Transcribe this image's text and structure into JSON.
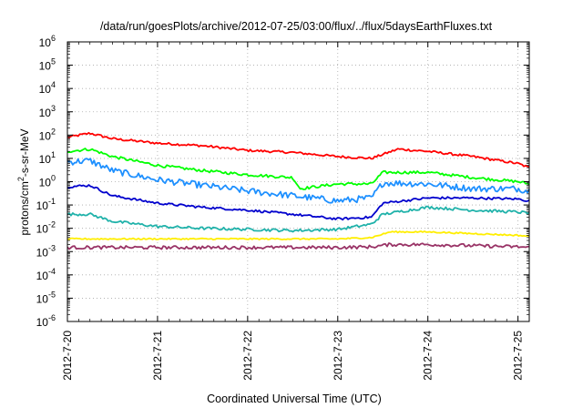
{
  "chart_data": {
    "type": "line",
    "title": "/data/run/goesPlots/archive/2012-07-25/03:00/flux/../flux/5daysEarthFluxes.txt",
    "xlabel": "Coordinated Universal Time (UTC)",
    "ylabel": {
      "base": "protons/cm",
      "sup": "2",
      "rest": "-s-sr-MeV"
    },
    "yscale": "log",
    "ylim": [
      -6,
      6
    ],
    "xlim": [
      "2012-07-20 00:00",
      "2012-07-25 03:00"
    ],
    "x_ticks": [
      "2012-7-20",
      "2012-7-21",
      "2012-7-22",
      "2012-7-23",
      "2012-7-24",
      "2012-7-25"
    ],
    "y_ticks": [
      {
        "base": "10",
        "exp": "-6"
      },
      {
        "base": "10",
        "exp": "-5"
      },
      {
        "base": "10",
        "exp": "-4"
      },
      {
        "base": "10",
        "exp": "-3"
      },
      {
        "base": "10",
        "exp": "-2"
      },
      {
        "base": "10",
        "exp": "-1"
      },
      {
        "base": "10",
        "exp": "0"
      },
      {
        "base": "10",
        "exp": "1"
      },
      {
        "base": "10",
        "exp": "2"
      },
      {
        "base": "10",
        "exp": "3"
      },
      {
        "base": "10",
        "exp": "4"
      },
      {
        "base": "10",
        "exp": "5"
      },
      {
        "base": "10",
        "exp": "6"
      }
    ],
    "grid": true,
    "legend": "none",
    "series": [
      {
        "color": "#ff0000",
        "noise": 0.05,
        "x": [
          "2012-07-20 00:00",
          "2012-07-20 06:00",
          "2012-07-20 12:00",
          "2012-07-21 00:00",
          "2012-07-21 12:00",
          "2012-07-22 00:00",
          "2012-07-22 12:00",
          "2012-07-23 00:00",
          "2012-07-23 09:00",
          "2012-07-23 16:00",
          "2012-07-24 00:00",
          "2012-07-24 12:00",
          "2012-07-25 00:00",
          "2012-07-25 03:00"
        ],
        "y": [
          80,
          120,
          70,
          45,
          35,
          22,
          18,
          12,
          10,
          25,
          20,
          12,
          6,
          4
        ]
      },
      {
        "color": "#00ff00",
        "noise": 0.06,
        "x": [
          "2012-07-20 00:00",
          "2012-07-20 06:00",
          "2012-07-20 12:00",
          "2012-07-21 00:00",
          "2012-07-21 12:00",
          "2012-07-22 00:00",
          "2012-07-22 12:00",
          "2012-07-22 14:00",
          "2012-07-23 00:00",
          "2012-07-23 09:00",
          "2012-07-23 12:00",
          "2012-07-24 00:00",
          "2012-07-24 12:00",
          "2012-07-25 00:00",
          "2012-07-25 03:00"
        ],
        "y": [
          20,
          25,
          12,
          5,
          3,
          2,
          1.5,
          0.5,
          0.8,
          0.8,
          2.5,
          2.5,
          1.5,
          1,
          0.8
        ]
      },
      {
        "color": "#1e90ff",
        "noise": 0.14,
        "x": [
          "2012-07-20 00:00",
          "2012-07-20 06:00",
          "2012-07-20 12:00",
          "2012-07-21 00:00",
          "2012-07-21 12:00",
          "2012-07-22 00:00",
          "2012-07-22 12:00",
          "2012-07-23 00:00",
          "2012-07-23 09:00",
          "2012-07-23 12:00",
          "2012-07-24 00:00",
          "2012-07-24 12:00",
          "2012-07-25 00:00",
          "2012-07-25 03:00"
        ],
        "y": [
          7,
          8,
          3,
          1.2,
          0.7,
          0.4,
          0.25,
          0.15,
          0.2,
          0.9,
          0.8,
          0.5,
          0.5,
          0.4
        ]
      },
      {
        "color": "#0000cd",
        "noise": 0.05,
        "x": [
          "2012-07-20 00:00",
          "2012-07-20 06:00",
          "2012-07-20 12:00",
          "2012-07-21 00:00",
          "2012-07-21 12:00",
          "2012-07-22 00:00",
          "2012-07-22 12:00",
          "2012-07-23 00:00",
          "2012-07-23 09:00",
          "2012-07-23 12:00",
          "2012-07-24 00:00",
          "2012-07-24 12:00",
          "2012-07-25 00:00",
          "2012-07-25 03:00"
        ],
        "y": [
          0.6,
          0.7,
          0.25,
          0.12,
          0.08,
          0.06,
          0.04,
          0.025,
          0.03,
          0.12,
          0.2,
          0.2,
          0.18,
          0.15
        ]
      },
      {
        "color": "#20b2aa",
        "noise": 0.06,
        "x": [
          "2012-07-20 00:00",
          "2012-07-20 06:00",
          "2012-07-20 12:00",
          "2012-07-21 00:00",
          "2012-07-21 12:00",
          "2012-07-22 00:00",
          "2012-07-22 12:00",
          "2012-07-23 00:00",
          "2012-07-23 09:00",
          "2012-07-23 12:00",
          "2012-07-24 00:00",
          "2012-07-24 12:00",
          "2012-07-25 00:00",
          "2012-07-25 03:00"
        ],
        "y": [
          0.04,
          0.04,
          0.02,
          0.012,
          0.01,
          0.009,
          0.008,
          0.009,
          0.015,
          0.04,
          0.08,
          0.06,
          0.05,
          0.045
        ]
      },
      {
        "color": "#ffee00",
        "noise": 0.03,
        "x": [
          "2012-07-20 00:00",
          "2012-07-21 00:00",
          "2012-07-22 00:00",
          "2012-07-23 00:00",
          "2012-07-23 09:00",
          "2012-07-23 14:00",
          "2012-07-24 00:00",
          "2012-07-25 00:00",
          "2012-07-25 03:00"
        ],
        "y": [
          0.0035,
          0.0035,
          0.0035,
          0.0035,
          0.004,
          0.007,
          0.007,
          0.005,
          0.0045
        ]
      },
      {
        "color": "#993366",
        "noise": 0.07,
        "x": [
          "2012-07-20 00:00",
          "2012-07-21 00:00",
          "2012-07-22 00:00",
          "2012-07-23 00:00",
          "2012-07-23 09:00",
          "2012-07-23 14:00",
          "2012-07-24 00:00",
          "2012-07-25 00:00",
          "2012-07-25 03:00"
        ],
        "y": [
          0.0015,
          0.0015,
          0.0015,
          0.0015,
          0.0016,
          0.002,
          0.002,
          0.0016,
          0.0015
        ]
      }
    ]
  }
}
